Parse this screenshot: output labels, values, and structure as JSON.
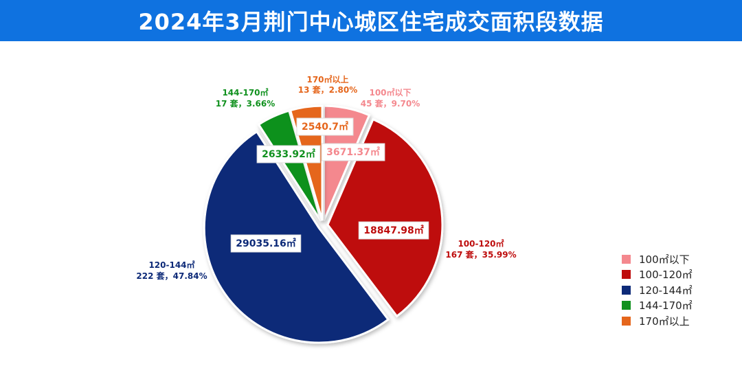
{
  "title": "2024年3月荆门中心城区住宅成交面积段数据",
  "colors": [
    "#f4888e",
    "#be0d0d",
    "#0d2a78",
    "#11911f",
    "#e5661c"
  ],
  "chart_data": {
    "type": "pie",
    "title": "2024年3月荆门中心城区住宅成交面积段数据",
    "slices": [
      {
        "name": "100㎡以下",
        "value": 3671.37,
        "value_label": "3671.37㎡",
        "count_label": "45 套，9.70%",
        "units": 45,
        "percent": 9.7
      },
      {
        "name": "100-120㎡",
        "value": 18847.98,
        "value_label": "18847.98㎡",
        "count_label": "167 套，35.99%",
        "units": 167,
        "percent": 35.99
      },
      {
        "name": "120-144㎡",
        "value": 29035.16,
        "value_label": "29035.16㎡",
        "count_label": "222 套，47.84%",
        "units": 222,
        "percent": 47.84
      },
      {
        "name": "144-170㎡",
        "value": 2633.92,
        "value_label": "2633.92㎡",
        "count_label": "17 套，3.66%",
        "units": 17,
        "percent": 3.66
      },
      {
        "name": "170㎡以上",
        "value": 2540.7,
        "value_label": "2540.7㎡",
        "count_label": "13 套，2.80%",
        "units": 13,
        "percent": 2.8
      }
    ],
    "legend_position": "right-bottom",
    "legend": [
      "100㎡以下",
      "100-120㎡",
      "120-144㎡",
      "144-170㎡",
      "170㎡以上"
    ]
  }
}
